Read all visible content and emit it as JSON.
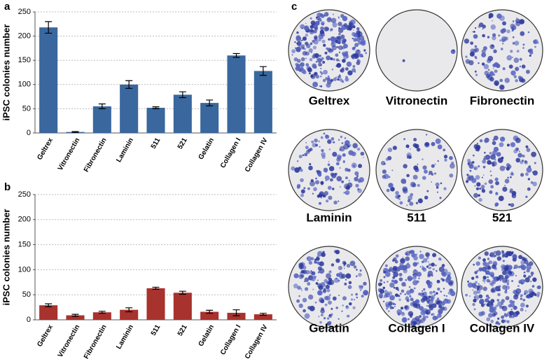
{
  "chart_data": [
    {
      "type": "bar",
      "panel_label": "a",
      "y_label": "iPSC colonies number",
      "color": "#3a679e",
      "grid": true,
      "categories": [
        "Geltrex",
        "Vitronectin",
        "Fibronectin",
        "Laminin",
        "511",
        "521",
        "Gelatin",
        "Collagen I",
        "Collagen IV"
      ],
      "values": [
        218,
        2,
        55,
        100,
        52,
        79,
        62,
        160,
        128
      ],
      "errors": [
        12,
        1,
        5,
        8,
        2,
        6,
        6,
        4,
        9
      ],
      "ylim": [
        0,
        250
      ],
      "yticks": [
        0,
        50,
        100,
        150,
        200,
        250
      ]
    },
    {
      "type": "bar",
      "panel_label": "b",
      "y_label": "iPSC colonies number",
      "color": "#a8322d",
      "grid": true,
      "categories": [
        "Geltrex",
        "Vitronectin",
        "Fibronectin",
        "Laminin",
        "511",
        "521",
        "Gelatin",
        "Collagen I",
        "Collagen IV"
      ],
      "values": [
        29,
        9,
        15,
        20,
        63,
        54,
        16,
        14,
        11
      ],
      "errors": [
        3,
        2,
        2,
        4,
        2,
        3,
        3,
        6,
        2
      ],
      "ylim": [
        0,
        250
      ],
      "yticks": [
        0,
        50,
        100,
        150,
        200,
        250
      ]
    }
  ],
  "image_panel": {
    "panel_label": "c",
    "wells": [
      "Geltrex",
      "Vitronectin",
      "Fibronectin",
      "Laminin",
      "511",
      "521",
      "Gelatin",
      "Collagen I",
      "Collagen IV"
    ]
  }
}
